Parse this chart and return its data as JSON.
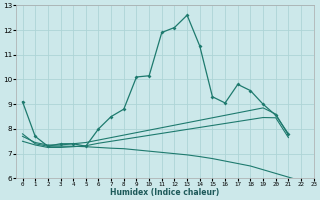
{
  "xlabel": "Humidex (Indice chaleur)",
  "xlim": [
    -0.5,
    23
  ],
  "ylim": [
    6,
    13
  ],
  "yticks": [
    6,
    7,
    8,
    9,
    10,
    11,
    12,
    13
  ],
  "xticks": [
    0,
    1,
    2,
    3,
    4,
    5,
    6,
    7,
    8,
    9,
    10,
    11,
    12,
    13,
    14,
    15,
    16,
    17,
    18,
    19,
    20,
    21,
    22,
    23
  ],
  "bg_color": "#cce8ea",
  "grid_color": "#aed4d6",
  "line_color": "#1e7a6e",
  "line1_x": [
    0,
    1,
    2,
    3,
    4,
    5,
    6,
    7,
    8,
    9,
    10,
    11,
    12,
    13,
    14,
    15,
    16,
    17,
    18,
    19,
    20,
    21
  ],
  "line1_y": [
    9.1,
    7.7,
    7.3,
    7.4,
    7.4,
    7.3,
    8.0,
    8.5,
    8.8,
    10.1,
    10.15,
    11.9,
    12.1,
    12.6,
    11.35,
    9.3,
    9.05,
    9.8,
    9.55,
    9.0,
    8.55,
    7.8
  ],
  "line2_x": [
    0,
    1,
    2,
    3,
    4,
    5,
    6,
    7,
    8,
    9,
    10,
    11,
    12,
    13,
    14,
    15,
    16,
    17,
    18,
    19,
    20,
    21
  ],
  "line2_y": [
    7.7,
    7.45,
    7.35,
    7.35,
    7.4,
    7.45,
    7.55,
    7.65,
    7.75,
    7.85,
    7.95,
    8.05,
    8.15,
    8.25,
    8.35,
    8.45,
    8.55,
    8.65,
    8.75,
    8.85,
    8.6,
    7.75
  ],
  "line3_x": [
    0,
    1,
    2,
    3,
    4,
    5,
    6,
    7,
    8,
    9,
    10,
    11,
    12,
    13,
    14,
    15,
    16,
    17,
    18,
    19,
    20,
    21
  ],
  "line3_y": [
    7.5,
    7.35,
    7.25,
    7.25,
    7.28,
    7.32,
    7.42,
    7.5,
    7.58,
    7.66,
    7.74,
    7.82,
    7.9,
    7.98,
    8.06,
    8.14,
    8.22,
    8.3,
    8.38,
    8.46,
    8.45,
    7.65
  ],
  "line4_x": [
    0,
    1,
    2,
    3,
    4,
    5,
    6,
    7,
    8,
    9,
    10,
    11,
    12,
    13,
    14,
    15,
    16,
    17,
    18,
    19,
    20,
    21,
    22,
    23
  ],
  "line4_y": [
    7.8,
    7.4,
    7.3,
    7.3,
    7.3,
    7.28,
    7.25,
    7.22,
    7.2,
    7.15,
    7.1,
    7.05,
    7.0,
    6.95,
    6.88,
    6.8,
    6.7,
    6.6,
    6.5,
    6.35,
    6.2,
    6.05,
    5.9,
    5.78
  ]
}
